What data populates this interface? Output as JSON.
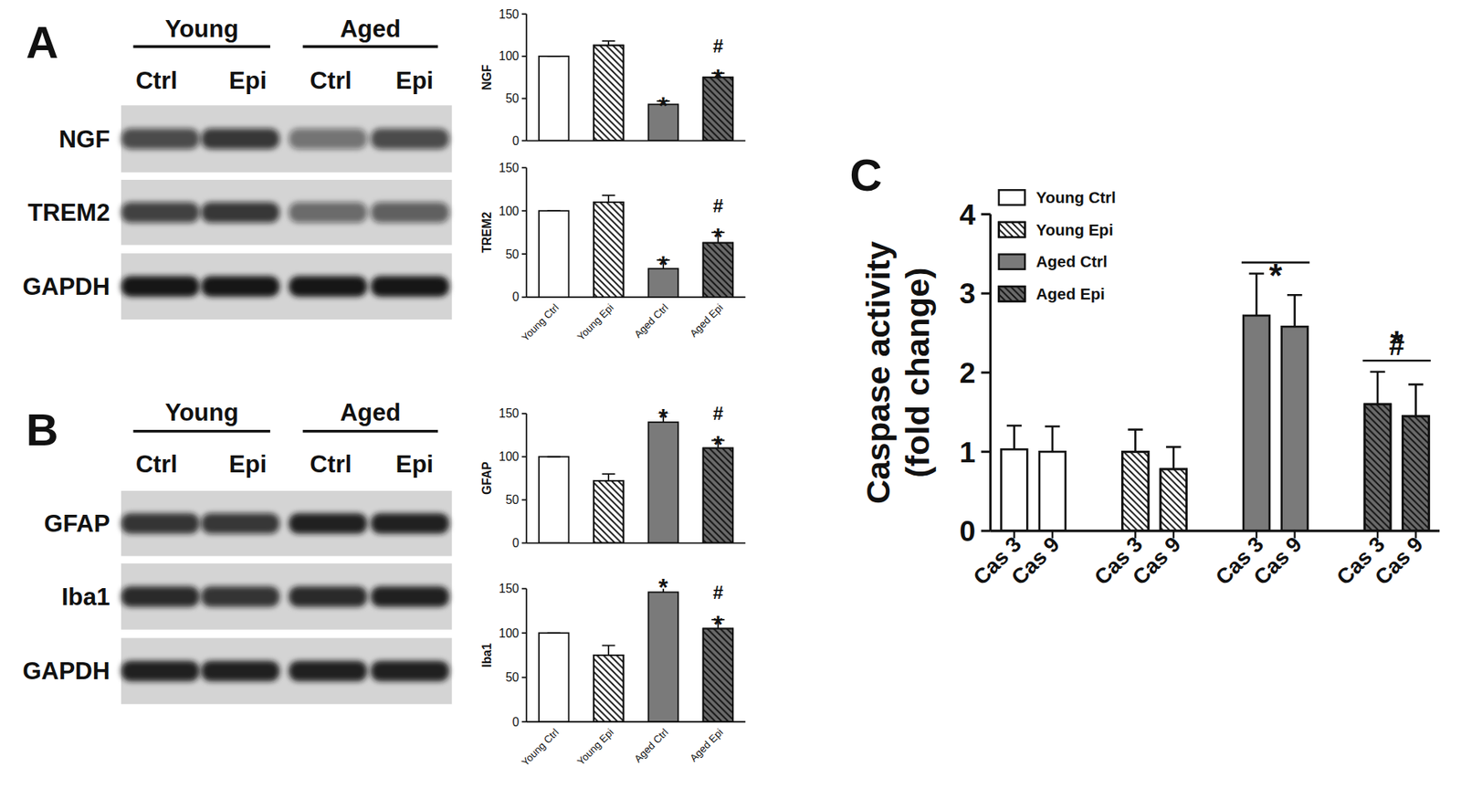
{
  "panel_labels": [
    "A",
    "B",
    "C"
  ],
  "blots": [
    {
      "groups": [
        "Young",
        "Aged"
      ],
      "lanes": [
        "Ctrl",
        "Epi",
        "Ctrl",
        "Epi"
      ],
      "rows": [
        "NGF",
        "TREM2",
        "GAPDH"
      ]
    },
    {
      "groups": [
        "Young",
        "Aged"
      ],
      "lanes": [
        "Ctrl",
        "Epi",
        "Ctrl",
        "Epi"
      ],
      "rows": [
        "GFAP",
        "Iba1",
        "GAPDH"
      ]
    }
  ],
  "chart_data": [
    {
      "type": "bar",
      "y_label": "NGF",
      "categories": [
        "Young Ctrl",
        "Young Epi",
        "Aged Ctrl",
        "Aged Epi"
      ],
      "values": [
        100,
        113,
        43,
        75
      ],
      "errors": [
        0,
        5,
        4,
        5
      ],
      "colors": [
        "#ffffff",
        "#ffffff",
        "#7a7a7a",
        "#6a6a6a"
      ],
      "ylim": [
        0,
        150
      ],
      "yticks": [
        0,
        50,
        100,
        150
      ],
      "tick_labels": "y",
      "annotations": [
        {
          "text": "*",
          "category": "Aged Ctrl"
        },
        {
          "text": "#",
          "category": "Aged Epi"
        },
        {
          "text": "*",
          "category": "Aged Epi"
        }
      ]
    },
    {
      "type": "bar",
      "y_label": "TREM2",
      "categories": [
        "Young Ctrl",
        "Young Epi",
        "Aged Ctrl",
        "Aged Epi"
      ],
      "values": [
        100,
        110,
        33,
        63
      ],
      "errors": [
        0,
        8,
        10,
        12
      ],
      "colors": [
        "#ffffff",
        "#ffffff",
        "#7a7a7a",
        "#6a6a6a"
      ],
      "ylim": [
        0,
        150
      ],
      "yticks": [
        0,
        50,
        100,
        150
      ],
      "annotations": [
        {
          "text": "*",
          "category": "Aged Ctrl"
        },
        {
          "text": "#",
          "category": "Aged Epi"
        },
        {
          "text": "*",
          "category": "Aged Epi"
        }
      ]
    },
    {
      "type": "bar",
      "y_label": "GFAP",
      "categories": [
        "Young Ctrl",
        "Young Epi",
        "Aged Ctrl",
        "Aged Epi"
      ],
      "values": [
        100,
        72,
        140,
        110
      ],
      "errors": [
        0,
        8,
        11,
        9
      ],
      "colors": [
        "#ffffff",
        "#ffffff",
        "#7a7a7a",
        "#6a6a6a"
      ],
      "ylim": [
        0,
        150
      ],
      "yticks": [
        0,
        50,
        100,
        150
      ],
      "tick_labels": "y",
      "annotations": [
        {
          "text": "*",
          "category": "Aged Ctrl"
        },
        {
          "text": "#",
          "category": "Aged Epi"
        },
        {
          "text": "*",
          "category": "Aged Epi"
        }
      ]
    },
    {
      "type": "bar",
      "y_label": "Iba1",
      "categories": [
        "Young Ctrl",
        "Young Epi",
        "Aged Ctrl",
        "Aged Epi"
      ],
      "values": [
        100,
        75,
        146,
        105
      ],
      "errors": [
        0,
        11,
        11,
        10
      ],
      "colors": [
        "#ffffff",
        "#ffffff",
        "#7a7a7a",
        "#6a6a6a"
      ],
      "ylim": [
        0,
        150
      ],
      "yticks": [
        0,
        50,
        100,
        150
      ],
      "annotations": [
        {
          "text": "*",
          "category": "Aged Ctrl"
        },
        {
          "text": "#",
          "category": "Aged Epi"
        },
        {
          "text": "*",
          "category": "Aged Epi"
        }
      ]
    },
    {
      "type": "bar",
      "y_label": [
        "Caspase activity",
        "(fold change)"
      ],
      "categories": [
        "Cas 3",
        "Cas 9"
      ],
      "series": [
        {
          "name": "Young Ctrl",
          "color": "#ffffff",
          "values": [
            1.03,
            1.0
          ],
          "errors": [
            0.3,
            0.32
          ]
        },
        {
          "name": "Young Epi",
          "color": "#ffffff",
          "values": [
            1.0,
            0.78
          ],
          "errors": [
            0.28,
            0.28
          ]
        },
        {
          "name": "Aged Ctrl",
          "color": "#7a7a7a",
          "values": [
            2.72,
            2.58
          ],
          "errors": [
            0.53,
            0.4
          ]
        },
        {
          "name": "Aged Epi",
          "color": "#6a6a6a",
          "values": [
            1.6,
            1.45
          ],
          "errors": [
            0.41,
            0.4
          ]
        }
      ],
      "ylim": [
        0,
        4
      ],
      "yticks": [
        0,
        1,
        2,
        3,
        4
      ],
      "legend": "top-left",
      "annotations": [
        {
          "text": "*",
          "series": "Aged Ctrl"
        },
        {
          "text": "*",
          "series": "Aged Epi"
        },
        {
          "text": "#",
          "series": "Aged Epi"
        }
      ]
    }
  ]
}
